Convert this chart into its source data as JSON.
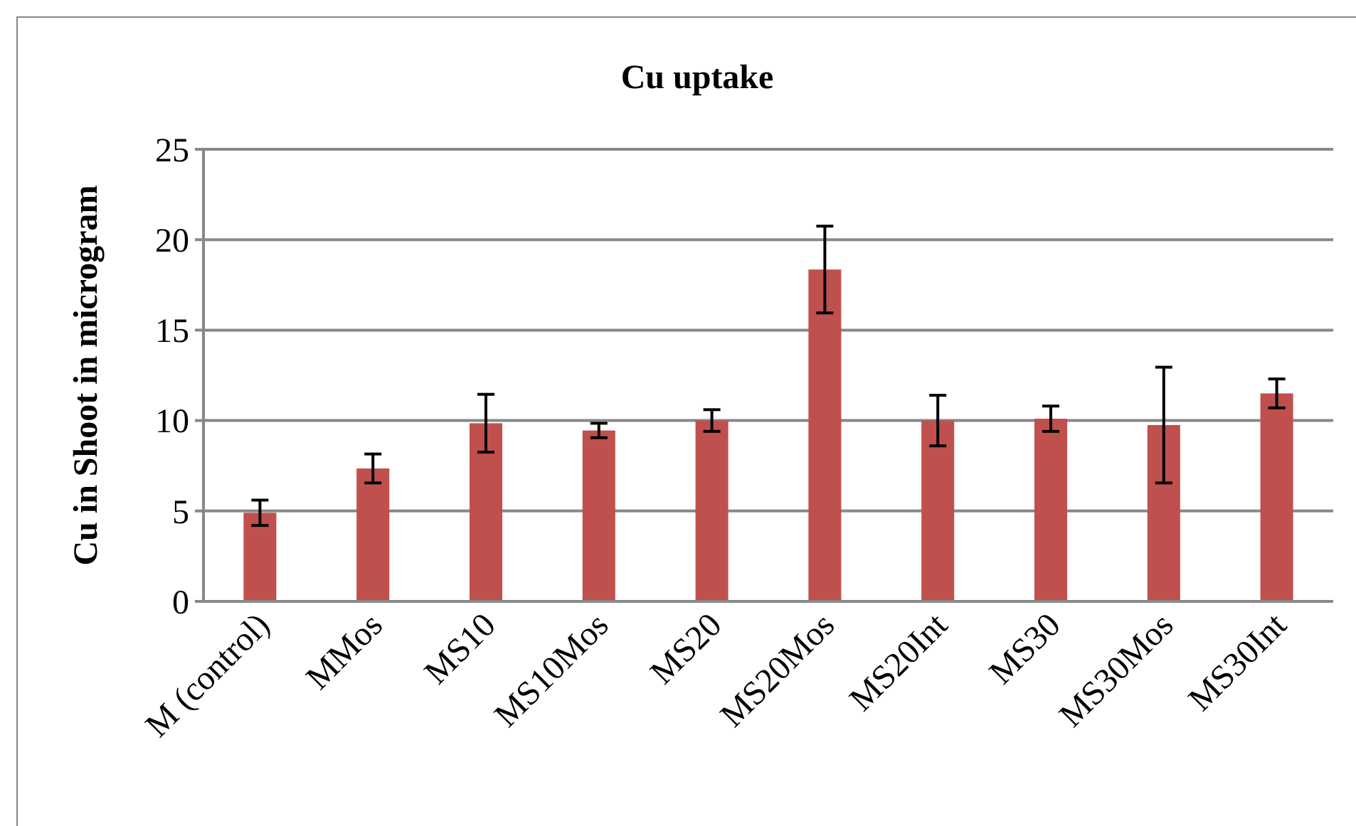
{
  "chart_data": {
    "type": "bar",
    "title": "Cu uptake",
    "ylabel": "Cu in Shoot in microgram",
    "categories": [
      "M (control)",
      "MMos",
      "MS10",
      "MS10Mos",
      "MS20",
      "MS20Mos",
      "MS20Int",
      "MS30",
      "MS30Mos",
      "MS30Int"
    ],
    "values": [
      4.9,
      7.35,
      9.85,
      9.45,
      10.0,
      18.35,
      10.0,
      10.1,
      9.75,
      11.5
    ],
    "errors": [
      0.7,
      0.8,
      1.6,
      0.4,
      0.6,
      2.4,
      1.4,
      0.7,
      3.2,
      0.8
    ],
    "color": "#c0504d",
    "ylim": [
      0,
      25
    ],
    "yticks": [
      0,
      5,
      10,
      15,
      20,
      25
    ],
    "grid": "y"
  }
}
